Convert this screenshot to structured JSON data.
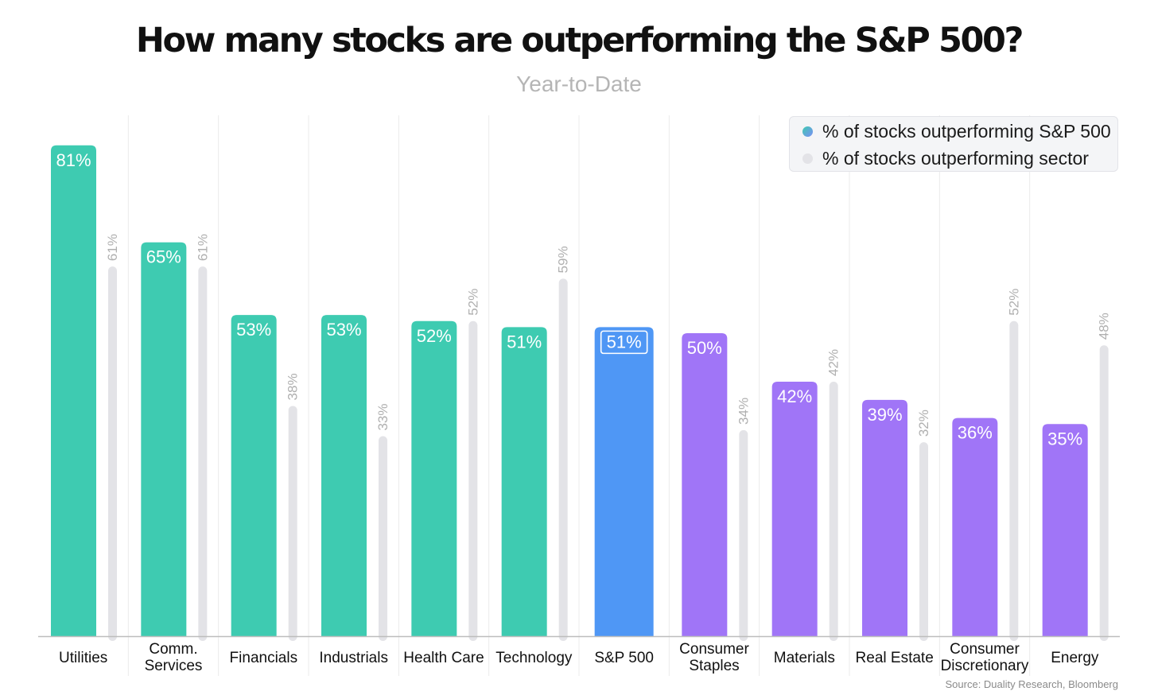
{
  "header": {
    "title": "How many stocks are outperforming the S&P 500?",
    "subtitle": "Year-to-Date"
  },
  "legend": {
    "items": [
      {
        "label": "% of stocks outperforming S&P 500",
        "color": "#3ecbb1"
      },
      {
        "label": "% of stocks outperforming sector",
        "color": "#e3e3e7"
      }
    ]
  },
  "source": "Source: Duality Research, Bloomberg",
  "colors": {
    "green": "#3ecbb1",
    "blue": "#4f97f5",
    "purple": "#a075f7",
    "gray": "#e3e3e7",
    "gray_label": "#b0b0b0"
  },
  "chart_data": {
    "type": "bar",
    "title": "How many stocks are outperforming the S&P 500?",
    "subtitle": "Year-to-Date",
    "categories": [
      [
        "Utilities"
      ],
      [
        "Comm.",
        "Services"
      ],
      [
        "Financials"
      ],
      [
        "Industrials"
      ],
      [
        "Health Care"
      ],
      [
        "Technology"
      ],
      [
        "S&P 500"
      ],
      [
        "Consumer",
        "Staples"
      ],
      [
        "Materials"
      ],
      [
        "Real Estate"
      ],
      [
        "Consumer",
        "Discretionary"
      ],
      [
        "Energy"
      ]
    ],
    "series": [
      {
        "name": "% of stocks outperforming S&P 500",
        "values": [
          81,
          65,
          53,
          53,
          52,
          51,
          51,
          50,
          42,
          39,
          36,
          35
        ],
        "labels": [
          "81%",
          "65%",
          "53%",
          "53%",
          "52%",
          "51%",
          "51%",
          "50%",
          "42%",
          "39%",
          "36%",
          "35%"
        ],
        "bar_colors": [
          "green",
          "green",
          "green",
          "green",
          "green",
          "green",
          "blue",
          "purple",
          "purple",
          "purple",
          "purple",
          "purple"
        ]
      },
      {
        "name": "% of stocks outperforming sector",
        "values": [
          61,
          61,
          38,
          33,
          52,
          59,
          null,
          34,
          42,
          32,
          52,
          48
        ],
        "labels": [
          "61%",
          "61%",
          "38%",
          "33%",
          "52%",
          "59%",
          null,
          "34%",
          "42%",
          "32%",
          "52%",
          "48%"
        ]
      }
    ],
    "ylim": [
      0,
      85
    ],
    "grid": false,
    "legend_position": "top-right"
  }
}
